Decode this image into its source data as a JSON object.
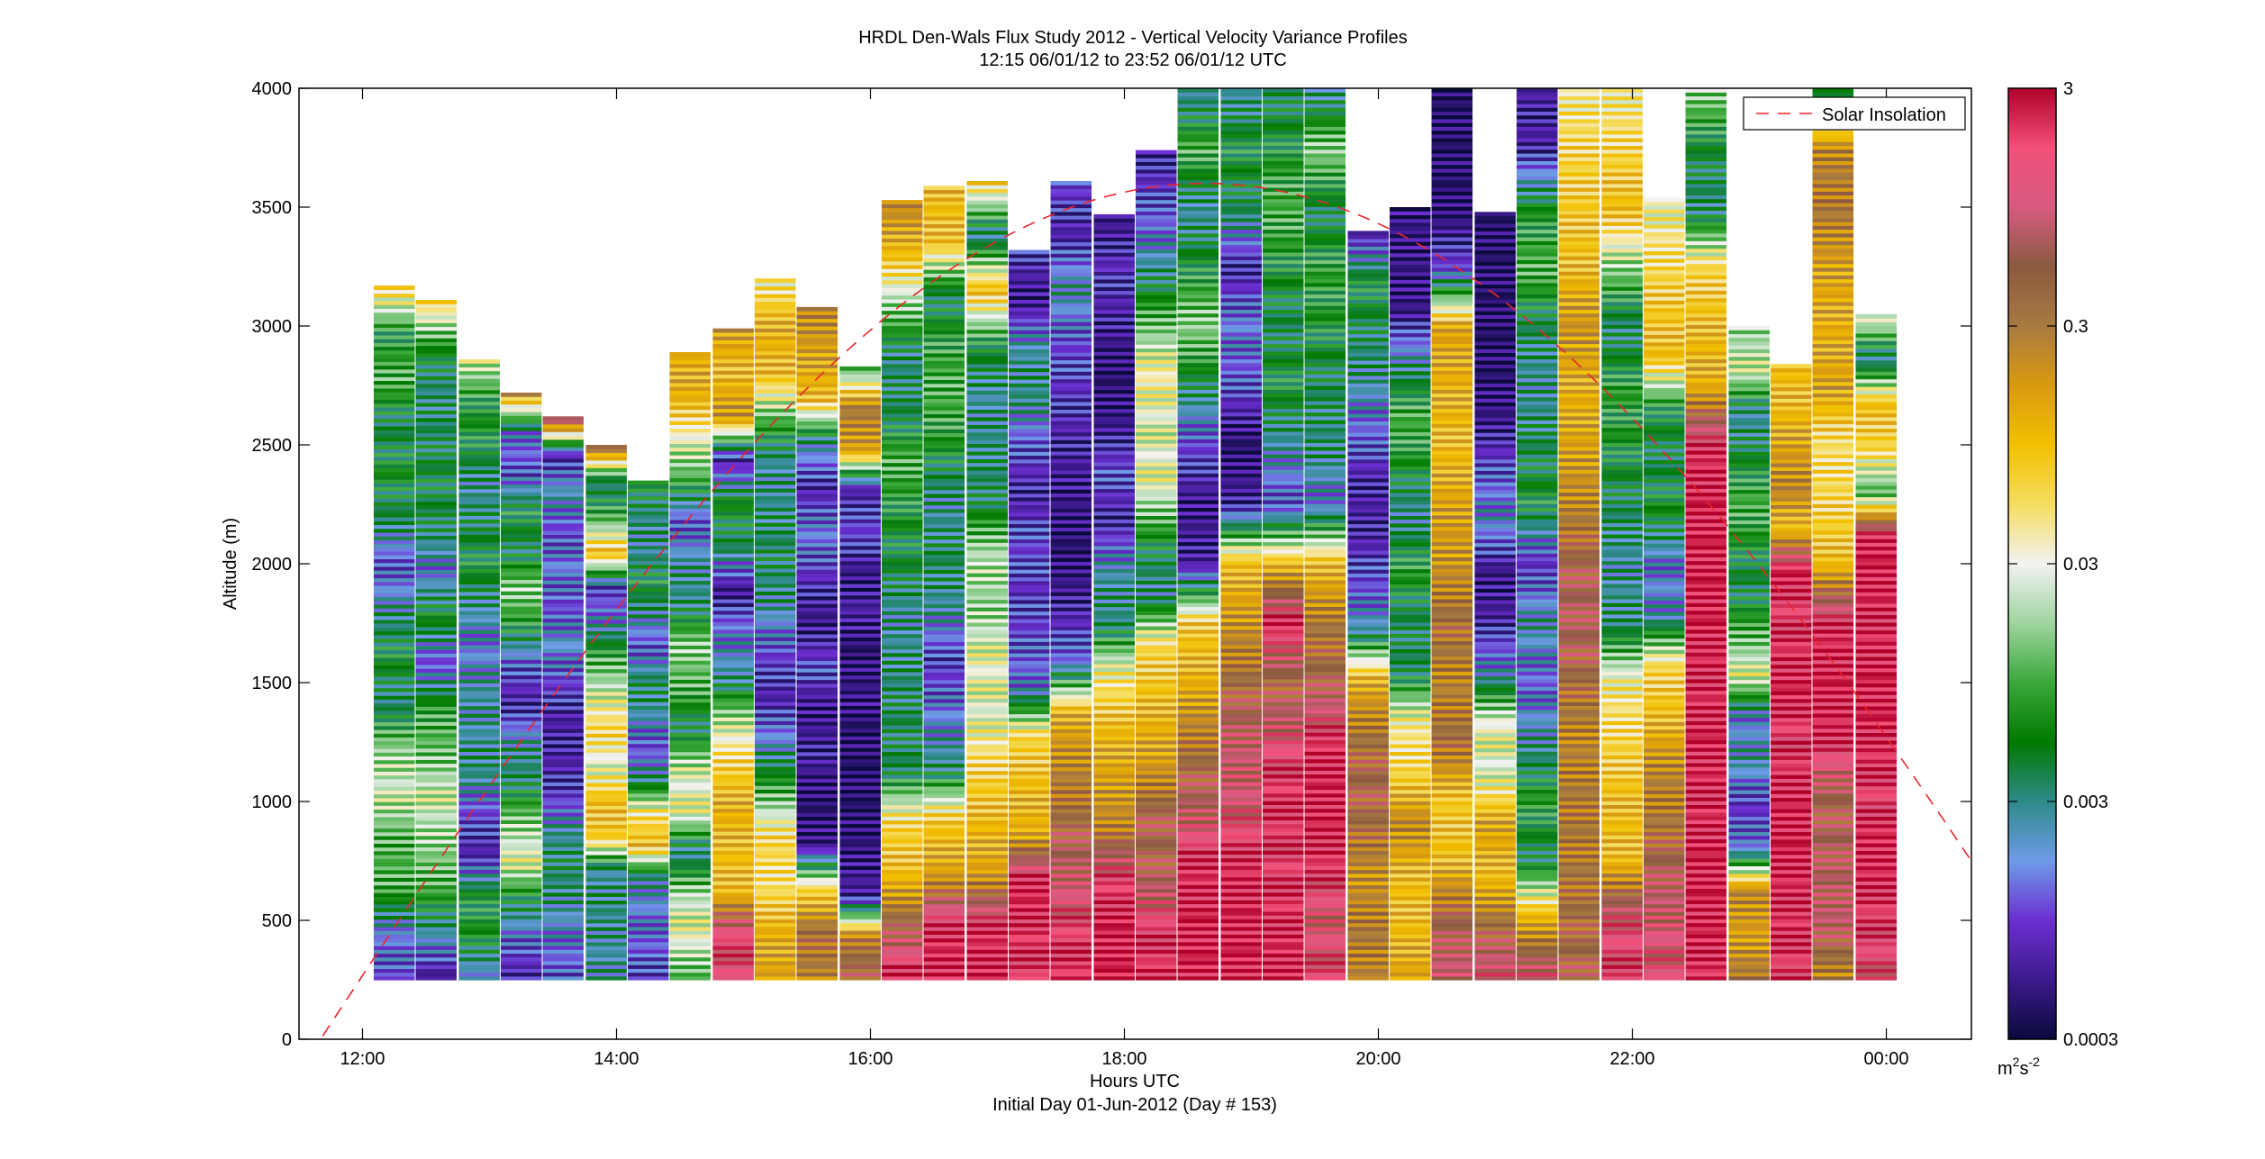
{
  "chart_data": {
    "type": "heatmap",
    "title": "HRDL Den-Wals Flux Study 2012 - Vertical Velocity Variance Profiles",
    "subtitle": "12:15 06/01/12 to 23:52 06/01/12  UTC",
    "xlabel": "Hours UTC",
    "xlabel2": "Initial Day 01-Jun-2012 (Day # 153)",
    "ylabel": "Altitude (m)",
    "xlim": [
      11.5,
      24.67
    ],
    "ylim": [
      0,
      4000
    ],
    "x_ticks": [
      12,
      14,
      16,
      18,
      20,
      22,
      24
    ],
    "x_tick_labels": [
      "12:00",
      "14:00",
      "16:00",
      "18:00",
      "20:00",
      "22:00",
      "00:00"
    ],
    "y_ticks": [
      0,
      500,
      1000,
      1500,
      2000,
      2500,
      3000,
      3500,
      4000
    ],
    "y_tick_labels": [
      "0",
      "500",
      "1000",
      "1500",
      "2000",
      "2500",
      "3000",
      "3500",
      "4000"
    ],
    "colorbar": {
      "scale": "log",
      "range": [
        0.0003,
        3
      ],
      "ticks": [
        0.0003,
        0.003,
        0.03,
        0.3,
        3
      ],
      "tick_labels": [
        "0.0003",
        "0.003",
        "0.03",
        "0.3",
        "3"
      ],
      "unit_base": "m",
      "unit_sup1": "2",
      "unit_mid": "s",
      "unit_sup2": "-2",
      "colors": [
        "#0a0a3c",
        "#3c1a8c",
        "#6b2fd0",
        "#6f9be8",
        "#2e8a8a",
        "#007a00",
        "#3aa83a",
        "#9fd49f",
        "#f2f2f2",
        "#f5dd60",
        "#f2c000",
        "#d99a10",
        "#a87a40",
        "#8b5a40",
        "#d85a80",
        "#f2507a",
        "#b0002a"
      ]
    },
    "legend": {
      "label": "Solar Insolation",
      "placement": "top-right",
      "color": "#e8262e"
    },
    "profile_times": [
      12.25,
      12.58,
      12.92,
      13.25,
      13.58,
      13.92,
      14.25,
      14.58,
      14.92,
      15.25,
      15.58,
      15.92,
      16.25,
      16.58,
      16.92,
      17.25,
      17.58,
      17.92,
      18.25,
      18.58,
      18.92,
      19.25,
      19.58,
      19.92,
      20.25,
      20.58,
      20.92,
      21.25,
      21.58,
      21.92,
      22.25,
      22.58,
      22.92,
      23.25,
      23.58,
      23.92
    ],
    "profile_top_m": [
      3170,
      3110,
      2860,
      2720,
      2620,
      2500,
      2350,
      2890,
      2990,
      3200,
      3080,
      2830,
      3530,
      3590,
      3610,
      3320,
      3610,
      3470,
      3740,
      4000,
      4000,
      4000,
      4000,
      3400,
      3500,
      4000,
      3480,
      4000,
      4000,
      4000,
      3540,
      4000,
      3000,
      2840,
      4000,
      3050
    ],
    "profile_base_m": 250,
    "profile_log10_variance": [
      [
        -3.0,
        -2.8,
        -2.0,
        -2.0,
        -1.6,
        -1.8,
        -2.5,
        -2.2,
        -2.6,
        -3.0,
        -2.4,
        -2.2,
        -2.4,
        -2.0,
        -2.2,
        -1.2
      ],
      [
        -3.3,
        -2.6,
        -2.0,
        -1.8,
        -1.6,
        -1.9,
        -2.1,
        -3.0,
        -2.2,
        -2.8,
        -2.4,
        -2.3,
        -2.4,
        -2.5,
        -2.2,
        -1.2
      ],
      [
        -2.8,
        -2.2,
        -2.2,
        -3.2,
        -3.0,
        -2.5,
        -2.6,
        -2.6,
        -2.8,
        -2.6,
        -2.2,
        -2.4,
        -2.6,
        -2.2,
        -2.2,
        -1.6
      ],
      [
        -3.2,
        -2.9,
        -2.3,
        -1.5,
        -1.8,
        -2.4,
        -2.6,
        -3.2,
        -3.0,
        -2.2,
        -1.8,
        -2.4,
        -2.2,
        -3.0,
        -2.8,
        -0.8
      ],
      [
        -3.0,
        -2.8,
        -2.6,
        -2.4,
        -2.6,
        -3.1,
        -3.2,
        -3.2,
        -3.0,
        -2.7,
        -3.0,
        -2.8,
        -3.0,
        -2.6,
        -3.2,
        0.0
      ],
      [
        -2.6,
        -2.6,
        -2.5,
        -2.6,
        -1.1,
        -1.0,
        -1.6,
        -1.2,
        -1.6,
        -2.0,
        -2.7,
        -3.1,
        -1.0,
        -2.0,
        -2.5,
        -0.4
      ],
      [
        -3.1,
        -2.9,
        -2.8,
        -2.6,
        -1.0,
        -1.3,
        -2.5,
        -3.0,
        -2.6,
        -2.4,
        -3.0,
        -2.6,
        -2.2,
        -2.6,
        -2.5,
        -2.2
      ],
      [
        -2.0,
        -1.5,
        -1.7,
        -2.6,
        -1.5,
        -1.6,
        -2.4,
        -2.0,
        -1.8,
        -2.5,
        -2.6,
        -3.0,
        -2.0,
        -1.5,
        -0.9,
        -0.9
      ],
      [
        0.1,
        0.2,
        -1.0,
        -1.0,
        -0.9,
        -1.2,
        -1.7,
        -2.6,
        -2.8,
        -3.3,
        -2.4,
        -2.2,
        -3.2,
        -0.7,
        -1.0,
        -0.8
      ],
      [
        -0.8,
        -0.9,
        -1.3,
        -1.2,
        -2.0,
        -2.7,
        -3.2,
        -3.0,
        -2.6,
        -2.4,
        -2.5,
        -2.6,
        -2.0,
        -1.0,
        -0.9,
        -1.4
      ],
      [
        -0.6,
        -0.4,
        -1.2,
        -3.3,
        -3.4,
        -3.2,
        -3.3,
        -3.0,
        -3.3,
        -3.1,
        -2.8,
        -3.2,
        -2.6,
        -1.0,
        -0.8,
        -0.6
      ],
      [
        -0.3,
        -0.5,
        -3.2,
        -3.3,
        -3.4,
        -3.4,
        -3.4,
        -3.3,
        -3.4,
        -3.2,
        -3.3,
        -3.0,
        -3.2,
        -0.8,
        -0.5,
        -2.0
      ],
      [
        0.4,
        -0.3,
        -1.0,
        -1.2,
        -2.4,
        -2.4,
        -2.5,
        -2.6,
        -2.3,
        -2.2,
        -2.0,
        -2.4,
        -2.5,
        -1.8,
        -1.0,
        -0.6
      ],
      [
        0.4,
        0.3,
        -0.8,
        -1.1,
        -2.5,
        -2.8,
        -3.1,
        -2.6,
        -2.4,
        -2.6,
        -2.2,
        -2.0,
        -2.1,
        -2.4,
        -1.0,
        -1.0
      ],
      [
        0.4,
        0.3,
        -0.8,
        -1.0,
        -1.2,
        -1.6,
        -1.5,
        -1.8,
        -1.7,
        -2.4,
        -2.5,
        -2.6,
        -2.2,
        -1.0,
        -2.6,
        -1.2
      ],
      [
        0.2,
        0.3,
        0.4,
        -0.9,
        -1.0,
        -1.2,
        -2.8,
        -3.0,
        -3.1,
        -3.0,
        -3.2,
        -3.0,
        -2.5,
        -2.6,
        -3.3,
        -3.1
      ],
      [
        0.3,
        0.2,
        -0.1,
        -0.4,
        -0.6,
        -0.9,
        -2.9,
        -3.2,
        -3.4,
        -3.3,
        -3.2,
        -3.1,
        -3.0,
        -2.6,
        -3.2,
        -3.0
      ],
      [
        0.4,
        0.4,
        0.2,
        -0.6,
        -0.8,
        -1.0,
        -1.4,
        -2.5,
        -2.6,
        -3.2,
        -3.0,
        -3.3,
        -3.4,
        -3.2,
        -3.1,
        -3.3
      ],
      [
        0.3,
        0.2,
        -0.3,
        -0.3,
        -0.8,
        -1.0,
        -1.2,
        -2.6,
        -2.2,
        -1.5,
        -1.6,
        -1.4,
        -2.0,
        -2.6,
        -3.0,
        -3.2
      ],
      [
        0.4,
        0.4,
        0.3,
        -0.2,
        -0.5,
        -0.9,
        -1.1,
        -3.2,
        -3.3,
        -3.0,
        -2.4,
        -1.8,
        -2.2,
        -2.6,
        -2.0,
        -2.6
      ],
      [
        0.4,
        0.4,
        0.3,
        0.0,
        -0.1,
        -0.4,
        -0.7,
        -1.0,
        -3.2,
        -3.4,
        -3.0,
        -2.8,
        -3.2,
        -2.4,
        -2.2,
        -2.6
      ],
      [
        0.4,
        0.3,
        0.2,
        0.3,
        0.1,
        -0.4,
        0.4,
        -1.0,
        -3.0,
        -2.6,
        -2.2,
        -2.4,
        -2.2,
        -2.0,
        -2.2,
        -2.4
      ],
      [
        0.2,
        0.0,
        0.3,
        0.4,
        0.3,
        -0.3,
        -0.5,
        -1.0,
        -2.8,
        -2.5,
        -2.4,
        -2.2,
        -2.1,
        -2.4,
        -1.8,
        -2.6
      ],
      [
        -0.6,
        -0.5,
        -0.7,
        -0.4,
        -0.3,
        -0.5,
        -0.9,
        -2.6,
        -3.0,
        -3.2,
        -3.2,
        -2.9,
        -2.6,
        -2.4,
        -2.2,
        -3.2
      ],
      [
        -0.8,
        -1.0,
        -1.0,
        -0.6,
        -1.2,
        -1.4,
        -2.4,
        -2.4,
        -2.1,
        -2.6,
        -2.2,
        -2.0,
        -2.6,
        -3.3,
        -3.3,
        -3.3
      ],
      [
        0.0,
        -0.3,
        -1.0,
        -1.1,
        -0.4,
        -0.6,
        -0.4,
        -0.7,
        -0.8,
        -1.0,
        -0.9,
        -0.8,
        -3.0,
        -3.4,
        -3.4,
        -3.4
      ],
      [
        0.1,
        -0.4,
        -1.0,
        -0.8,
        -1.6,
        -1.5,
        -2.7,
        -3.2,
        -3.3,
        -2.7,
        -3.0,
        -3.3,
        -3.4,
        -3.4,
        -3.4,
        -3.4
      ],
      [
        0.1,
        -0.9,
        -2.4,
        -2.1,
        -2.6,
        -2.9,
        -2.6,
        -3.1,
        -2.2,
        -2.4,
        -2.6,
        -2.4,
        -2.0,
        -2.2,
        -3.2,
        -3.2
      ],
      [
        -0.3,
        -0.4,
        -0.5,
        -0.5,
        -0.6,
        -0.4,
        -0.2,
        -0.3,
        -0.6,
        -0.8,
        -0.9,
        -0.7,
        -1.0,
        -1.1,
        -1.2,
        -1.4
      ],
      [
        0.2,
        0.1,
        -1.0,
        -1.0,
        -1.2,
        -1.4,
        -2.5,
        -2.6,
        -2.4,
        -2.2,
        -2.1,
        -2.5,
        -1.8,
        -1.0,
        -1.2,
        -1.4
      ],
      [
        0.1,
        0.0,
        -0.2,
        -0.5,
        -0.6,
        -1.0,
        -1.2,
        -2.7,
        -2.8,
        -2.2,
        -2.4,
        -2.2,
        -1.0,
        -1.1,
        -1.3,
        -1.5
      ],
      [
        0.3,
        0.4,
        0.4,
        0.3,
        0.4,
        0.3,
        0.4,
        0.4,
        0.4,
        0.3,
        -0.9,
        -1.0,
        -1.2,
        -2.5,
        -2.3,
        -1.8
      ],
      [
        -0.5,
        -0.8,
        -0.6,
        -2.8,
        -3.1,
        -2.6,
        -2.8,
        -1.5,
        -2.0,
        -2.4,
        -2.2,
        -2.0,
        -2.3,
        -2.6,
        -1.6,
        -1.8
      ],
      [
        0.2,
        0.3,
        0.3,
        0.4,
        0.4,
        0.3,
        0.2,
        0.4,
        0.3,
        0.2,
        0.4,
        -1.0,
        -0.6,
        -0.8,
        -1.0,
        -1.0
      ],
      [
        -0.6,
        -0.1,
        -0.2,
        -0.3,
        0.3,
        0.4,
        0.3,
        -1.0,
        -1.2,
        -1.3,
        -0.8,
        -0.9,
        -0.8,
        -0.5,
        -0.6,
        -2.4
      ],
      [
        0.1,
        0.2,
        0.3,
        0.4,
        0.2,
        0.3,
        0.4,
        0.4,
        0.3,
        0.4,
        0.4,
        -2.0,
        -1.2,
        -1.0,
        -2.6,
        -1.5
      ]
    ]
  }
}
